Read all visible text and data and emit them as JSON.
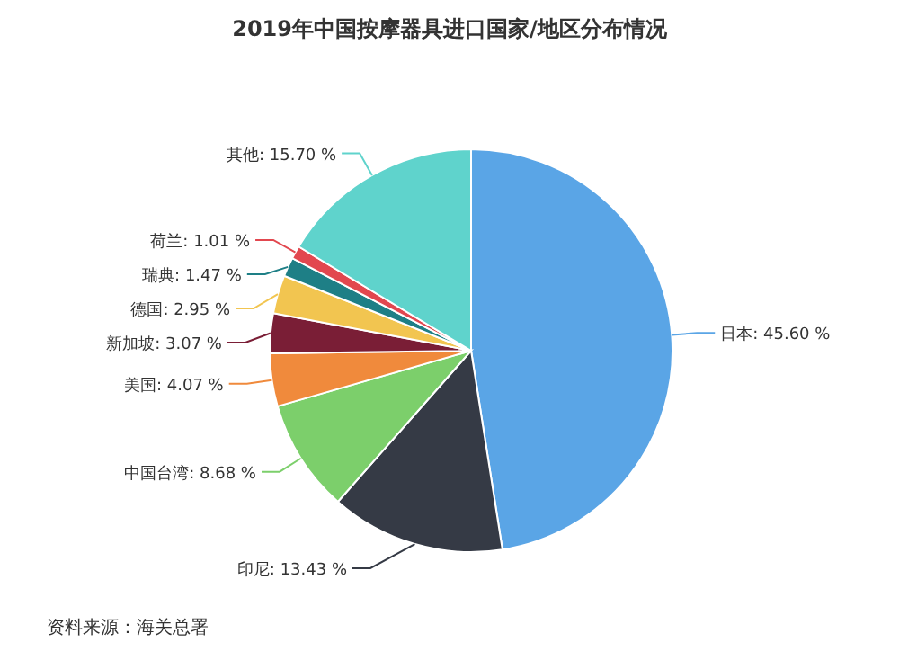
{
  "chart_data": {
    "type": "pie",
    "title": "2019年中国按摩器具进口国家/地区分布情况",
    "categories": [
      "日本",
      "印尼",
      "中国台湾",
      "美国",
      "新加坡",
      "德国",
      "瑞典",
      "荷兰",
      "其他"
    ],
    "values": [
      45.6,
      13.43,
      8.68,
      4.07,
      3.07,
      2.95,
      1.47,
      1.01,
      15.7
    ],
    "value_labels": [
      "45.60 %",
      "13.43 %",
      "8.68 %",
      "4.07 %",
      "3.07 %",
      "2.95 %",
      "1.47 %",
      "1.01 %",
      "15.70 %"
    ],
    "colors": [
      "#5aa5e6",
      "#353a45",
      "#7ccf6b",
      "#f08a3c",
      "#7a1e36",
      "#f2c550",
      "#1e7f86",
      "#e2474f",
      "#5fd3cc"
    ],
    "annotations": [
      "资料来源：海关总署"
    ]
  }
}
